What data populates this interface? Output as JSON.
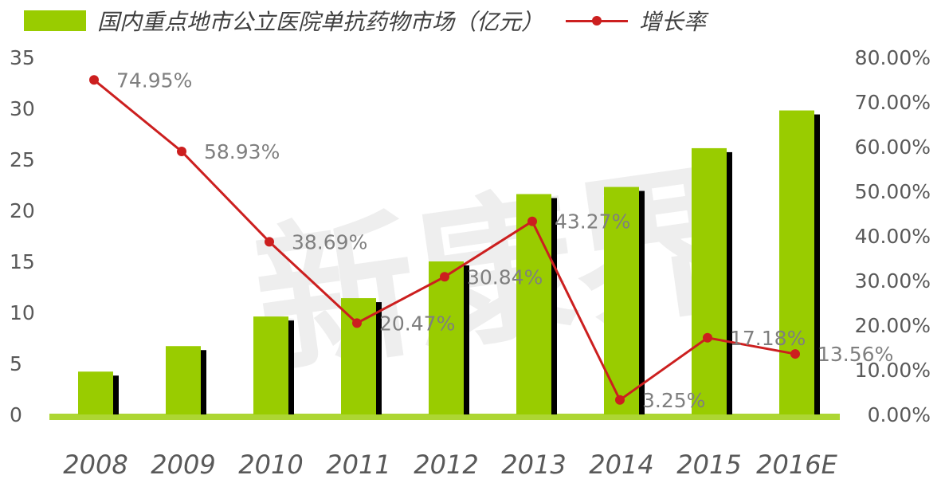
{
  "legend": {
    "bar_label": "国内重点地市公立医院单抗药物市场（亿元）",
    "line_label": "增长率"
  },
  "watermark": "新康界",
  "colors": {
    "bar": "#99cc00",
    "bar_shadow": "#000000",
    "line": "#cc1f1f",
    "axis_text": "#595959",
    "label_text": "#7f7f7f",
    "baseline": "#99cc00"
  },
  "chart_data": {
    "type": "bar",
    "categories": [
      "2008",
      "2009",
      "2010",
      "2011",
      "2012",
      "2013",
      "2014",
      "2015",
      "2016E"
    ],
    "series": [
      {
        "name": "国内重点地市公立医院单抗药物市场（亿元）",
        "type": "bar",
        "axis": "left",
        "values": [
          4.2,
          6.7,
          9.6,
          11.4,
          15.0,
          21.6,
          22.3,
          26.1,
          29.8
        ]
      },
      {
        "name": "增长率",
        "type": "line",
        "axis": "right",
        "values": [
          74.95,
          58.93,
          38.69,
          20.47,
          30.84,
          43.27,
          3.25,
          17.18,
          13.56
        ],
        "labels": [
          "74.95%",
          "58.93%",
          "38.69%",
          "20.47%",
          "30.84%",
          "43.27%",
          "3.25%",
          "17.18%",
          "13.56%"
        ]
      }
    ],
    "y_left": {
      "ticks": [
        "0",
        "5",
        "10",
        "15",
        "20",
        "25",
        "30",
        "35"
      ],
      "ylim": [
        0,
        35
      ]
    },
    "y_right": {
      "ticks": [
        "0.00%",
        "10.00%",
        "20.00%",
        "30.00%",
        "40.00%",
        "50.00%",
        "60.00%",
        "70.00%",
        "80.00%"
      ],
      "ylim": [
        0,
        80
      ]
    },
    "legend_position": "top",
    "grid": false
  }
}
